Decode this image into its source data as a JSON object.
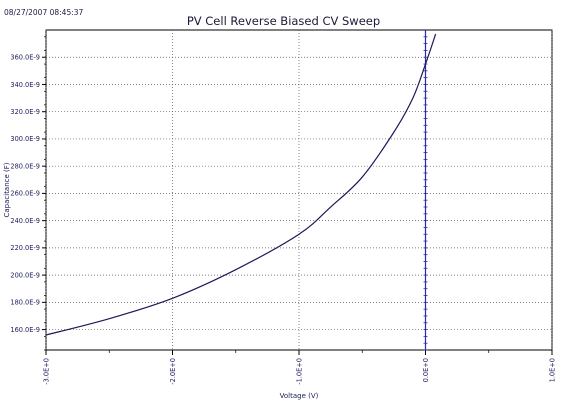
{
  "timestamp": "08/27/2007 08:45:37",
  "chart_data": {
    "type": "line",
    "title": "PV Cell Reverse Biased CV Sweep",
    "xlabel": "Voltage (V)",
    "ylabel": "Capacitance (F)",
    "xlim": [
      -3.0,
      1.0
    ],
    "ylim": [
      1.45e-07,
      3.8e-07
    ],
    "x_ticks": [
      -3.0,
      -2.0,
      -1.0,
      0.0,
      1.0
    ],
    "x_tick_labels": [
      "-3.0E+0",
      "-2.0E+0",
      "-1.0E+0",
      "0.0E+0",
      "1.0E+0"
    ],
    "y_ticks": [
      1.6e-07,
      1.8e-07,
      2e-07,
      2.2e-07,
      2.4e-07,
      2.6e-07,
      2.8e-07,
      3e-07,
      3.2e-07,
      3.4e-07,
      3.6e-07
    ],
    "y_tick_labels": [
      "160.0E-9",
      "180.0E-9",
      "200.0E-9",
      "220.0E-9",
      "240.0E-9",
      "260.0E-9",
      "280.0E-9",
      "300.0E-9",
      "320.0E-9",
      "340.0E-9",
      "360.0E-9"
    ],
    "grid": true,
    "line_color": "#1a1a5a",
    "marker_line": {
      "x": 0.0,
      "color": "#2a2aa8"
    },
    "series": [
      {
        "x": [
          -3.0,
          -2.5,
          -2.0,
          -1.5,
          -1.0,
          -0.75,
          -0.5,
          -0.25,
          -0.1,
          0.0,
          0.08
        ],
        "y": [
          1.56e-07,
          1.68e-07,
          1.83e-07,
          2.04e-07,
          2.3e-07,
          2.5e-07,
          2.72e-07,
          3.05e-07,
          3.3e-07,
          3.55e-07,
          3.77e-07
        ]
      }
    ]
  }
}
